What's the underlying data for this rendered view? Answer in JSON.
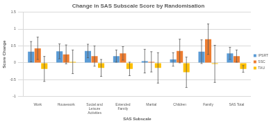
{
  "chart_data": {
    "type": "bar",
    "title": "Change in SAS Subscale Score by Randomisation",
    "x_label": "SAS Subscale",
    "y_label": "Score Change",
    "categories": [
      "Work",
      "Housework",
      "Social and Leisure Activities",
      "Extended Family",
      "Marital",
      "Children",
      "Family",
      "SAS Total"
    ],
    "series": [
      {
        "name": "IPSRT",
        "color": "#5b9bd5",
        "values": [
          0.33,
          0.34,
          0.35,
          0.2,
          0.05,
          0.1,
          0.33,
          0.28
        ],
        "errors": [
          0.3,
          0.22,
          0.2,
          0.18,
          0.35,
          0.2,
          0.35,
          0.18
        ]
      },
      {
        "name": "SSC",
        "color": "#ed7d31",
        "values": [
          0.43,
          0.25,
          0.2,
          0.28,
          0.03,
          0.35,
          0.7,
          0.2
        ],
        "errors": [
          0.33,
          0.28,
          0.3,
          0.2,
          0.3,
          0.35,
          0.45,
          0.18
        ]
      },
      {
        "name": "TAU",
        "color": "#ffc000",
        "values": [
          -0.18,
          0.03,
          -0.15,
          -0.18,
          -0.15,
          -0.28,
          -0.03,
          -0.18
        ],
        "errors": [
          0.37,
          0.35,
          0.25,
          0.2,
          0.45,
          0.45,
          0.55,
          0.1
        ]
      }
    ],
    "ylim": [
      -1,
      1.5
    ],
    "yticks": [
      -1,
      -0.5,
      0,
      0.5,
      1,
      1.5
    ],
    "grid": true,
    "legend": "right"
  }
}
